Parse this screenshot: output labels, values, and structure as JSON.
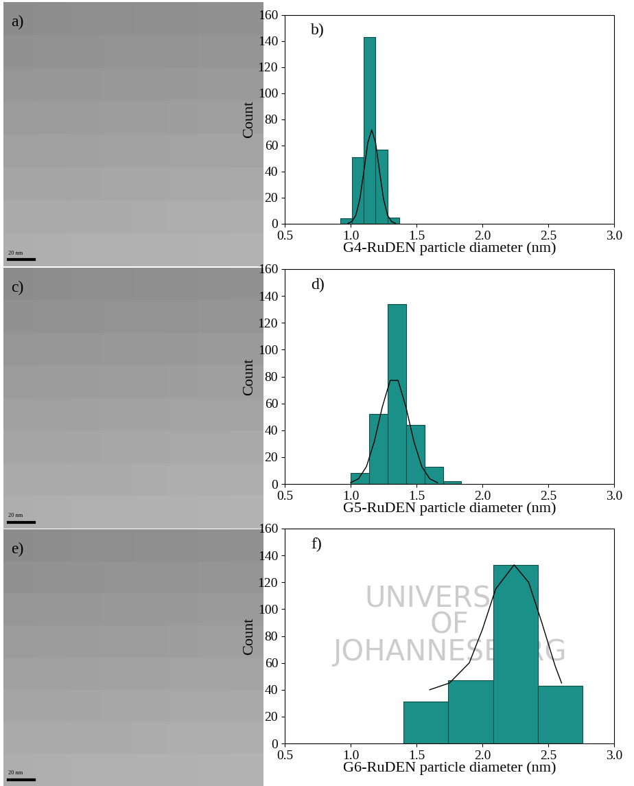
{
  "chart_data": [
    {
      "type": "image",
      "panel_label": "a)",
      "scale_bar_label": "20 nm"
    },
    {
      "type": "histogram",
      "panel_label": "b)",
      "bins": [
        0.92,
        1.01,
        1.1,
        1.19,
        1.28,
        1.37
      ],
      "counts": [
        4,
        51,
        143,
        57,
        5
      ],
      "color": "#1b9088",
      "fit": {
        "x": [
          0.98,
          1.01,
          1.04,
          1.07,
          1.1,
          1.13,
          1.16,
          1.19,
          1.22,
          1.25,
          1.28,
          1.31,
          1.34
        ],
        "values": [
          0.34,
          1.75,
          6.6,
          18.9,
          39.8,
          62.0,
          72,
          62.0,
          39.8,
          18.9,
          6.6,
          1.75,
          0.34
        ],
        "color": "#000000"
      },
      "xlabel": "G4-RuDEN particle diameter (nm)",
      "ylabel": "Count",
      "xlim": [
        0.5,
        3.0
      ],
      "xticks": [
        0.5,
        {
          "value": 1.0,
          "label": "1.0"
        },
        1.5,
        {
          "value": 2.0,
          "label": "2.0"
        },
        2.5,
        {
          "value": 3.0,
          "label": "3.0"
        }
      ],
      "ylim": [
        0,
        160
      ],
      "yticks": [
        0,
        20,
        40,
        60,
        80,
        100,
        120,
        140,
        160
      ]
    },
    {
      "type": "image",
      "panel_label": "c)",
      "scale_bar_label": "20 nm"
    },
    {
      "type": "histogram",
      "panel_label": "d)",
      "bins": [
        1.0,
        1.14,
        1.28,
        1.42,
        1.56,
        1.7,
        1.84
      ],
      "counts": [
        8,
        52,
        134,
        44,
        13,
        2
      ],
      "color": "#1b9088",
      "fit": {
        "x": [
          1.0,
          1.06,
          1.12,
          1.18,
          1.24,
          1.3,
          1.36,
          1.42,
          1.48,
          1.54,
          1.6,
          1.66
        ],
        "values": [
          0.89,
          3.9,
          12.9,
          31.6,
          57.2,
          77.1,
          77.1,
          57.2,
          31.6,
          12.9,
          3.9,
          0.89
        ],
        "color": "#000000"
      },
      "xlabel": "G5-RuDEN particle diameter (nm)",
      "ylabel": "Count",
      "xlim": [
        0.5,
        3.0
      ],
      "xticks": [
        0.5,
        {
          "value": 1.0,
          "label": "1.0"
        },
        1.5,
        {
          "value": 2.0,
          "label": "2.0"
        },
        2.5,
        {
          "value": 3.0,
          "label": "3.0"
        }
      ],
      "ylim": [
        0,
        160
      ],
      "yticks": [
        0,
        20,
        40,
        60,
        80,
        100,
        120,
        140,
        160
      ]
    },
    {
      "type": "image",
      "panel_label": "e)",
      "scale_bar_label": "20 nm"
    },
    {
      "type": "histogram",
      "panel_label": "f)",
      "bins": [
        1.4,
        1.74,
        2.08,
        2.42,
        2.76
      ],
      "counts": [
        31,
        47,
        133,
        43
      ],
      "color": "#1b9088",
      "fit": {
        "x": [
          1.6,
          1.75,
          1.9,
          2.0,
          2.1,
          2.24,
          2.35,
          2.45,
          2.55,
          2.6
        ],
        "values": [
          40,
          45,
          60,
          85,
          115,
          133,
          120,
          90,
          58,
          45
        ],
        "color": "#000000"
      },
      "xlabel": "G6-RuDEN particle diameter (nm)",
      "ylabel": "Count",
      "xlim": [
        0.5,
        3.0
      ],
      "xticks": [
        0.5,
        {
          "value": 1.0,
          "label": "1.0"
        },
        1.5,
        {
          "value": 2.0,
          "label": "2.0"
        },
        2.5,
        {
          "value": 3.0,
          "label": "3.0"
        }
      ],
      "ylim": [
        0,
        160
      ],
      "yticks": [
        0,
        20,
        40,
        60,
        80,
        100,
        120,
        140,
        160
      ]
    }
  ],
  "watermark": [
    "UNIVERSITY",
    "OF",
    "JOHANNESBURG"
  ]
}
